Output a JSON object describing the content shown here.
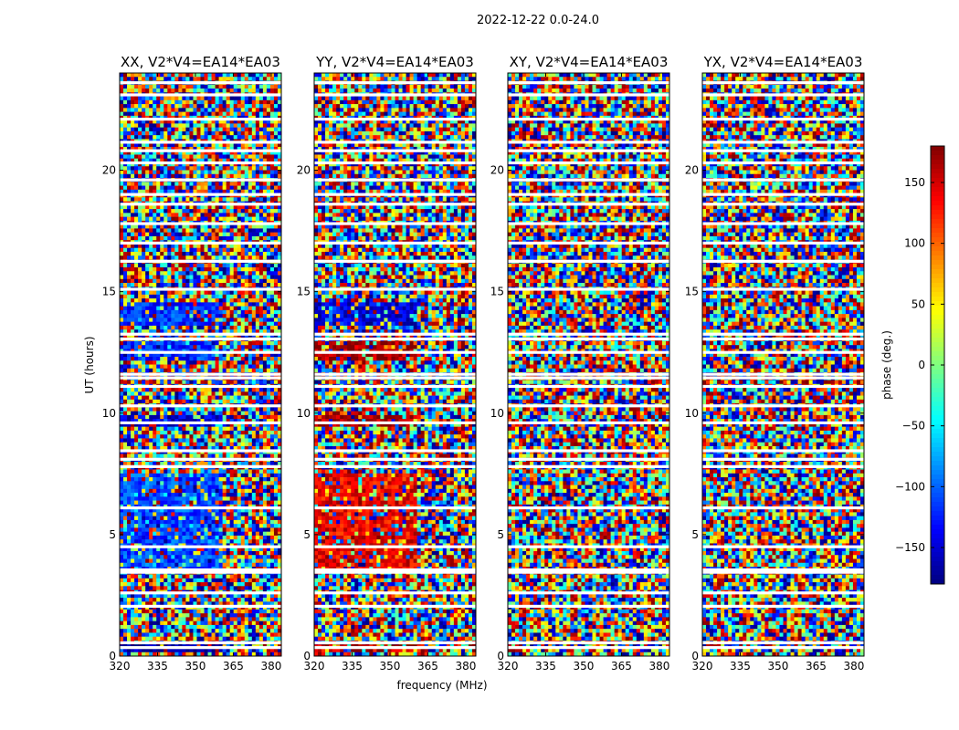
{
  "chart_data": {
    "type": "heatmap",
    "suptitle": "2022-12-22 0.0-24.0",
    "xlabel": "frequency (MHz)",
    "ylabel": "UT (hours)",
    "xlim": [
      320,
      384
    ],
    "ylim": [
      0,
      24
    ],
    "xticks": [
      "320",
      "335",
      "350",
      "365",
      "380"
    ],
    "yticks": [
      "0",
      "5",
      "10",
      "15",
      "20"
    ],
    "panels": [
      {
        "title": "XX, V2*V4=EA14*EA03",
        "pol": "XX"
      },
      {
        "title": "YY, V2*V4=EA14*EA03",
        "pol": "YY"
      },
      {
        "title": "XY, V2*V4=EA14*EA03",
        "pol": "XY"
      },
      {
        "title": "YX, V2*V4=EA14*EA03",
        "pol": "YX"
      }
    ],
    "colorbar": {
      "label": "phase (deg.)",
      "range": [
        -180,
        180
      ],
      "ticks": [
        "150",
        "100",
        "50",
        "0",
        "−50",
        "−100",
        "−150"
      ],
      "tick_values": [
        150,
        100,
        50,
        0,
        -50,
        -100,
        -150
      ],
      "colormap": "jet"
    },
    "flagged_hours": [
      0.35,
      0.55,
      2.05,
      2.6,
      3.45,
      3.55,
      4.5,
      6.1,
      7.8,
      8.1,
      8.45,
      9.6,
      10.3,
      11.1,
      11.45,
      11.6,
      12.5,
      13.05,
      13.25,
      15.1,
      16.25,
      17.0,
      17.8,
      18.6,
      19.0,
      19.6,
      20.3,
      20.8,
      21.15,
      22.1,
      23.1,
      23.6
    ],
    "coherent_hours": [
      {
        "from": 3.5,
        "to": 7.6,
        "xx_phase": -110,
        "yy_phase": 140
      },
      {
        "from": 12.2,
        "to": 13.0,
        "xx_phase": -120,
        "yy_phase": 170
      },
      {
        "from": 13.6,
        "to": 14.6,
        "xx_phase": -120,
        "yy_phase": -150
      },
      {
        "from": 9.5,
        "to": 9.9,
        "xx_phase": -150,
        "yy_phase": 170
      },
      {
        "from": 0.2,
        "to": 0.5,
        "xx_phase": -170,
        "yy_phase": 160
      }
    ],
    "grid": false
  }
}
